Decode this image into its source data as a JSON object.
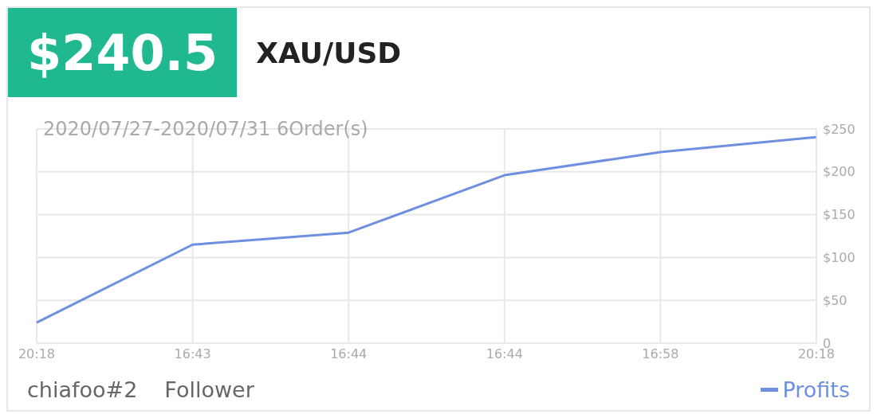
{
  "chart_data": {
    "type": "line",
    "title": "XAU/USD",
    "subtitle": "2020/07/27-2020/07/31 6Order(s)",
    "annotations": [
      "$240.5",
      "chiafoo#2",
      "Follower"
    ],
    "categories": [
      "20:18",
      "16:43",
      "16:44",
      "16:44",
      "16:58",
      "20:18"
    ],
    "series": [
      {
        "name": "Profits",
        "color": "#6f8fe0",
        "values": [
          24,
          115,
          129,
          196,
          223,
          240.5
        ]
      }
    ],
    "ylim": [
      0,
      250
    ],
    "yticks": [
      {
        "value": 0,
        "label": "0"
      },
      {
        "value": 50,
        "label": "$50"
      },
      {
        "value": 100,
        "label": "$100"
      },
      {
        "value": 150,
        "label": "$150"
      },
      {
        "value": 200,
        "label": "$200"
      },
      {
        "value": 250,
        "label": "$250"
      }
    ],
    "grid": true,
    "legend": "bottom right"
  }
}
